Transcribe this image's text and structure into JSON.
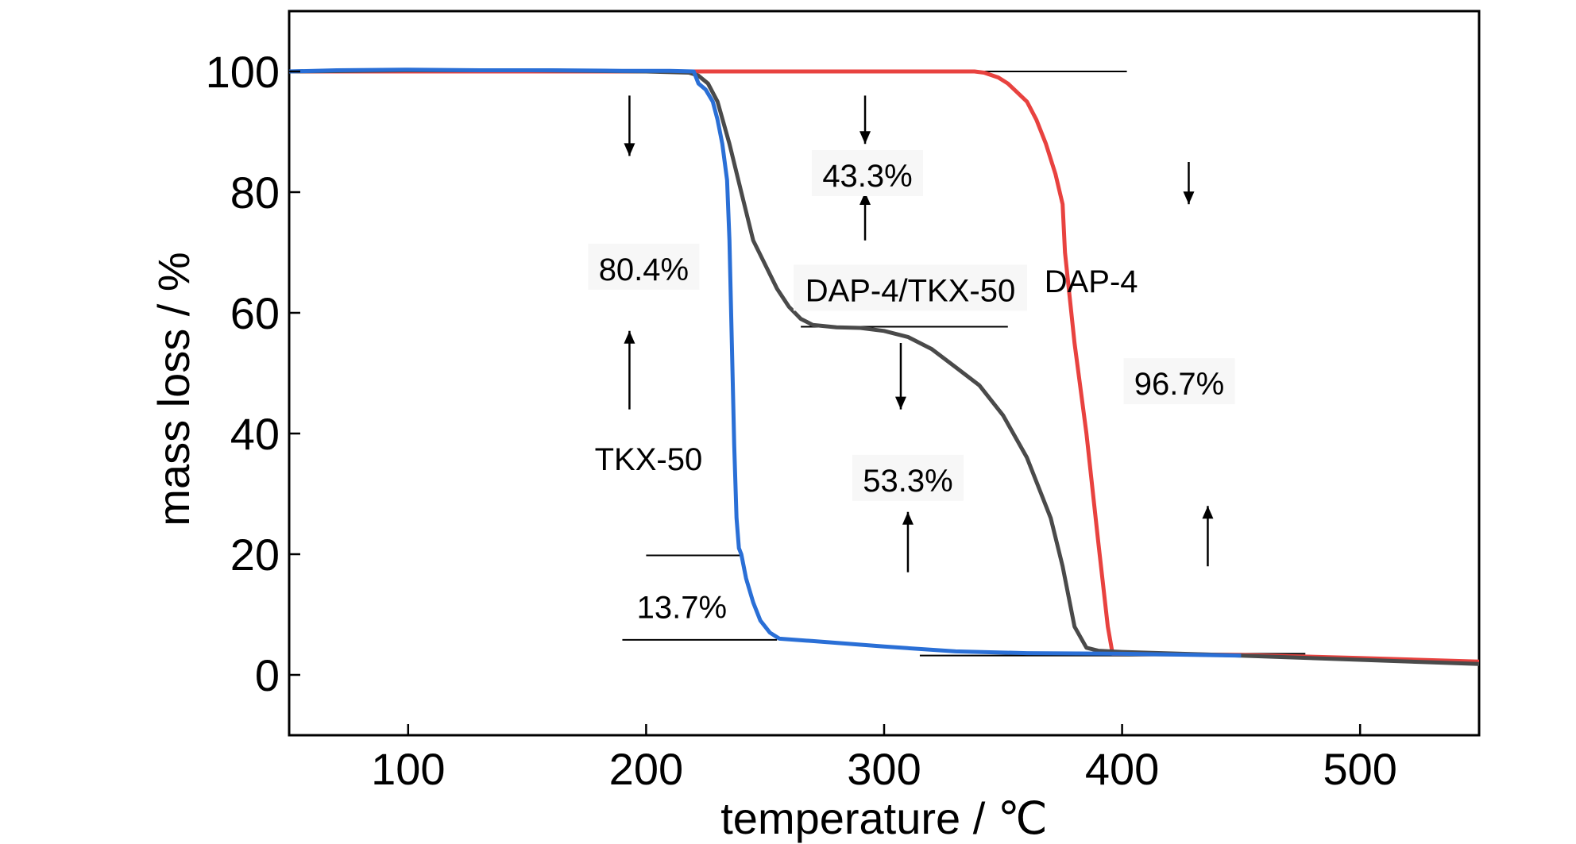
{
  "chart_data": {
    "type": "line",
    "title": "",
    "xlabel": "temperature / ℃",
    "ylabel": "mass loss / %",
    "xlim": [
      50,
      550
    ],
    "ylim": [
      -10,
      110
    ],
    "xticks": [
      100,
      200,
      300,
      400,
      500
    ],
    "yticks": [
      0,
      20,
      40,
      60,
      80,
      100
    ],
    "xtick_labels": [
      "100",
      "200",
      "300",
      "400",
      "500"
    ],
    "ytick_labels": [
      "0",
      "20",
      "40",
      "60",
      "80",
      "100"
    ],
    "grid": false,
    "legend": "none",
    "colors": {
      "tkx50": "#2a6fd6",
      "dap4tkx50": "#4a4a4a",
      "dap4": "#e8423f",
      "guide": "#000000"
    },
    "series": [
      {
        "name": "TKX-50",
        "color": "#2a6fd6",
        "x": [
          50,
          70,
          100,
          130,
          160,
          190,
          210,
          220,
          222,
          225,
          228,
          230,
          232,
          234,
          235,
          236,
          237,
          238,
          239,
          240,
          242,
          245,
          248,
          252,
          256,
          270,
          300,
          330,
          360,
          400,
          450
        ],
        "y": [
          100,
          100.2,
          100.3,
          100.2,
          100.2,
          100.1,
          100.1,
          100,
          98,
          97,
          95,
          92,
          88,
          82,
          72,
          55,
          38,
          26,
          21,
          20,
          16,
          12,
          9,
          7,
          6,
          5.6,
          4.7,
          3.9,
          3.6,
          3.5,
          3.2
        ]
      },
      {
        "name": "DAP-4/TKX-50",
        "color": "#4a4a4a",
        "x": [
          50,
          100,
          150,
          200,
          218,
          222,
          226,
          230,
          235,
          240,
          245,
          250,
          255,
          260,
          265,
          270,
          280,
          290,
          300,
          310,
          320,
          330,
          340,
          350,
          360,
          370,
          375,
          380,
          385,
          390,
          400,
          450,
          500,
          550
        ],
        "y": [
          100,
          100.2,
          100.2,
          100,
          99.8,
          99.3,
          98,
          95,
          88,
          80,
          72,
          68,
          64,
          61,
          59,
          58,
          57.6,
          57.5,
          57,
          56,
          54,
          51,
          48,
          43,
          36,
          26,
          18,
          8,
          4.5,
          4,
          3.8,
          3.2,
          2.5,
          1.8
        ]
      },
      {
        "name": "DAP-4",
        "color": "#e8423f",
        "x": [
          50,
          100,
          150,
          200,
          250,
          300,
          338,
          342,
          348,
          352,
          356,
          360,
          364,
          368,
          372,
          375,
          376,
          380,
          385,
          390,
          394,
          396,
          400,
          450,
          500,
          550
        ],
        "y": [
          100,
          100,
          100,
          100,
          100,
          100,
          100,
          99.8,
          99,
          98,
          96.5,
          95,
          92,
          88,
          83,
          78,
          70,
          55,
          40,
          22,
          8,
          3.5,
          3.5,
          3.3,
          2.8,
          2.2
        ]
      }
    ],
    "guide_lines": [
      {
        "x": [
          338,
          402
        ],
        "y": [
          100,
          100
        ]
      },
      {
        "x": [
          265,
          352
        ],
        "y": [
          57.7,
          57.7
        ]
      },
      {
        "x": [
          200,
          240
        ],
        "y": [
          19.8,
          19.8
        ]
      },
      {
        "x": [
          190,
          255
        ],
        "y": [
          5.8,
          5.8
        ]
      },
      {
        "x": [
          315,
          477
        ],
        "y": [
          3.2,
          3.2
        ]
      },
      {
        "x": [
          404,
          477
        ],
        "y": [
          3.5,
          3.5
        ]
      }
    ],
    "arrows": [
      {
        "x": 193,
        "y_from": 96,
        "y_to": 86
      },
      {
        "x": 193,
        "y_from": 44,
        "y_to": 57
      },
      {
        "x": 292,
        "y_from": 96,
        "y_to": 88
      },
      {
        "x": 292,
        "y_from": 72,
        "y_to": 80
      },
      {
        "x": 307,
        "y_from": 55,
        "y_to": 44
      },
      {
        "x": 310,
        "y_from": 17,
        "y_to": 27
      },
      {
        "x": 428,
        "y_from": 85,
        "y_to": 78
      },
      {
        "x": 436,
        "y_from": 18,
        "y_to": 28
      }
    ],
    "annotations": [
      {
        "text": "80.4%",
        "x": 199,
        "y": 67,
        "bg": true
      },
      {
        "text": "43.3%",
        "x": 293,
        "y": 82.5,
        "bg": true
      },
      {
        "text": "DAP-4/TKX-50",
        "x": 311,
        "y": 63.5,
        "bg": true
      },
      {
        "text": "DAP-4",
        "x": 387,
        "y": 65,
        "bg": false
      },
      {
        "text": "96.7%",
        "x": 424,
        "y": 48,
        "bg": true
      },
      {
        "text": "TKX-50",
        "x": 201,
        "y": 35.5,
        "bg": false
      },
      {
        "text": "53.3%",
        "x": 310,
        "y": 32,
        "bg": true
      },
      {
        "text": "13.7%",
        "x": 215,
        "y": 11,
        "bg": false
      }
    ]
  }
}
